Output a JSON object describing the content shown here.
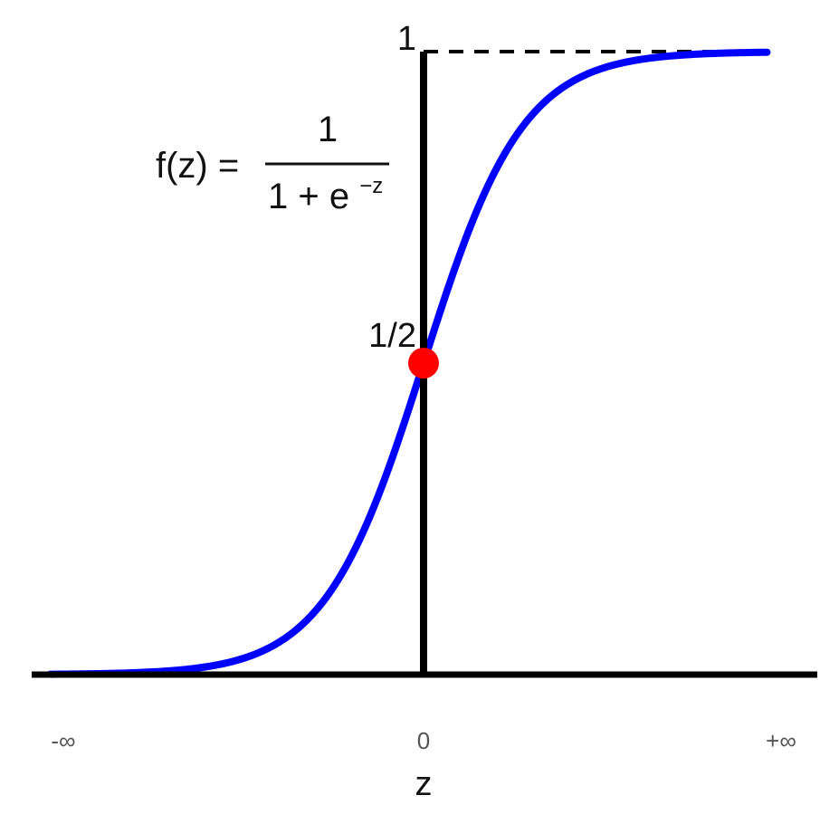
{
  "chart_data": {
    "type": "line",
    "function": "sigmoid",
    "formula": {
      "lhs": "f(z) =",
      "numerator": "1",
      "denominator_base": "1 + e",
      "denominator_exponent": "−z"
    },
    "x_ticks": [
      "-∞",
      "0",
      "+∞"
    ],
    "xlabel": "z",
    "y_ticks": {
      "top": "1",
      "mid": "1/2"
    },
    "ylim": [
      0,
      1
    ],
    "xlim": [
      -7.5,
      6.9
    ],
    "highlight_point": {
      "x": 0,
      "y": 0.5
    },
    "asymptote": {
      "y": 1,
      "style": "dashed"
    },
    "colors": {
      "curve": "#0000ff",
      "point": "#ff0000",
      "axes": "#000000"
    },
    "grid": false
  }
}
